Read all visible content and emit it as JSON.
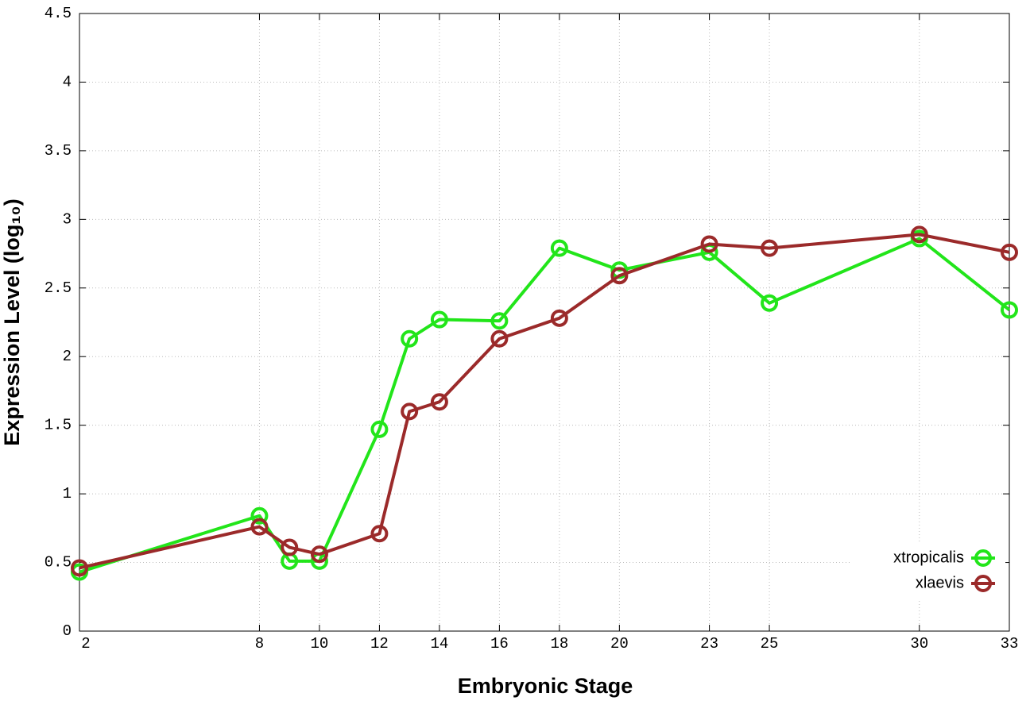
{
  "chart_data": {
    "type": "line",
    "x_label": "Embryonic Stage",
    "y_label": "Expression Level (log₁₀)",
    "x": [
      2,
      8,
      9,
      10,
      12,
      13,
      14,
      16,
      18,
      20,
      23,
      25,
      30,
      33
    ],
    "series": [
      {
        "name": "xtropicalis",
        "color": "#22e51a",
        "values": [
          0.43,
          0.84,
          0.51,
          0.51,
          1.47,
          2.13,
          2.27,
          2.26,
          2.79,
          2.63,
          2.76,
          2.39,
          2.86,
          2.34
        ]
      },
      {
        "name": "xlaevis",
        "color": "#9b2a2a",
        "values": [
          0.46,
          0.76,
          0.61,
          0.56,
          0.71,
          1.6,
          1.67,
          2.13,
          2.28,
          2.59,
          2.82,
          2.79,
          2.89,
          2.76
        ]
      }
    ],
    "xlim": [
      2,
      33
    ],
    "xticks": [
      2,
      8,
      10,
      12,
      14,
      16,
      18,
      20,
      23,
      25,
      30,
      33
    ],
    "ylim": [
      0,
      4.5
    ],
    "yticks": [
      0,
      0.5,
      1,
      1.5,
      2,
      2.5,
      3,
      3.5,
      4,
      4.5
    ],
    "grid": true,
    "legend": "bottom-right"
  }
}
